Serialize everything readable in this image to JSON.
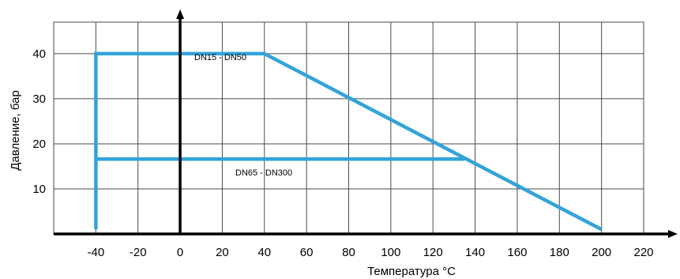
{
  "chart_data": {
    "type": "line",
    "xlabel": "Температура °C",
    "ylabel": "Давление, бар",
    "x_ticks": [
      "-40",
      "-20",
      "0",
      "20",
      "40",
      "60",
      "80",
      "100",
      "120",
      "140",
      "160",
      "180",
      "200",
      "220"
    ],
    "y_ticks": [
      "10",
      "20",
      "30",
      "40"
    ],
    "xlim": [
      -60,
      220
    ],
    "ylim": [
      0,
      47
    ],
    "grid": true,
    "colors": {
      "series": "#33a3d9",
      "grid": "#4a4a4a",
      "axis": "#000000"
    },
    "series": [
      {
        "name": "DN15 - DN50",
        "x": [
          -40,
          -40,
          40,
          200
        ],
        "y": [
          1,
          40,
          40,
          1
        ]
      },
      {
        "name": "DN65 - DN300",
        "x": [
          -40,
          135
        ],
        "y": [
          16.6,
          16.6
        ]
      }
    ],
    "annotations": [
      "DN15 - DN50",
      "DN65 - DN300"
    ]
  }
}
